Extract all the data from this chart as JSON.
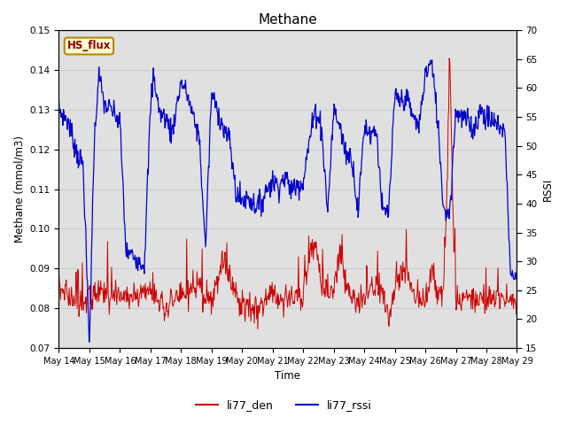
{
  "title": "Methane",
  "ylabel_left": "Methane (mmol/m3)",
  "ylabel_right": "RSSI",
  "xlabel": "Time",
  "ylim_left": [
    0.07,
    0.15
  ],
  "ylim_right": [
    15,
    70
  ],
  "annotation_text": "HS_flux",
  "annotation_color": "#8B0000",
  "annotation_bg": "#FFFACD",
  "annotation_border": "#B8860B",
  "x_tick_labels": [
    "May 14",
    "May 15",
    "May 16",
    "May 17",
    "May 18",
    "May 19",
    "May 20",
    "May 21",
    "May 22",
    "May 23",
    "May 24",
    "May 25",
    "May 26",
    "May 27",
    "May 28",
    "May 29"
  ],
  "grid_color": "#cccccc",
  "bg_color": "#e0e0e0",
  "legend_entries": [
    "li77_den",
    "li77_rssi"
  ],
  "line_color_red": "#cc0000",
  "line_color_blue": "#0000cc",
  "figsize": [
    6.4,
    4.8
  ],
  "dpi": 100
}
